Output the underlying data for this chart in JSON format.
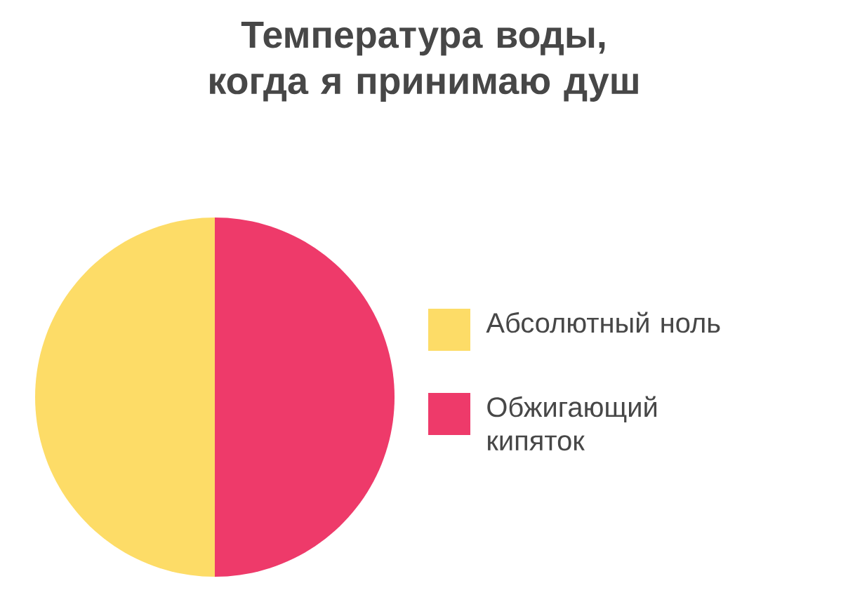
{
  "chart_data": {
    "type": "pie",
    "title": "Температура воды,\nкогда я принимаю душ",
    "categories": [
      "Абсолютный ноль",
      "Обжигающий кипяток"
    ],
    "values": [
      50,
      50
    ],
    "colors": [
      "#fddc67",
      "#ee3a6a"
    ],
    "legend": "right"
  }
}
